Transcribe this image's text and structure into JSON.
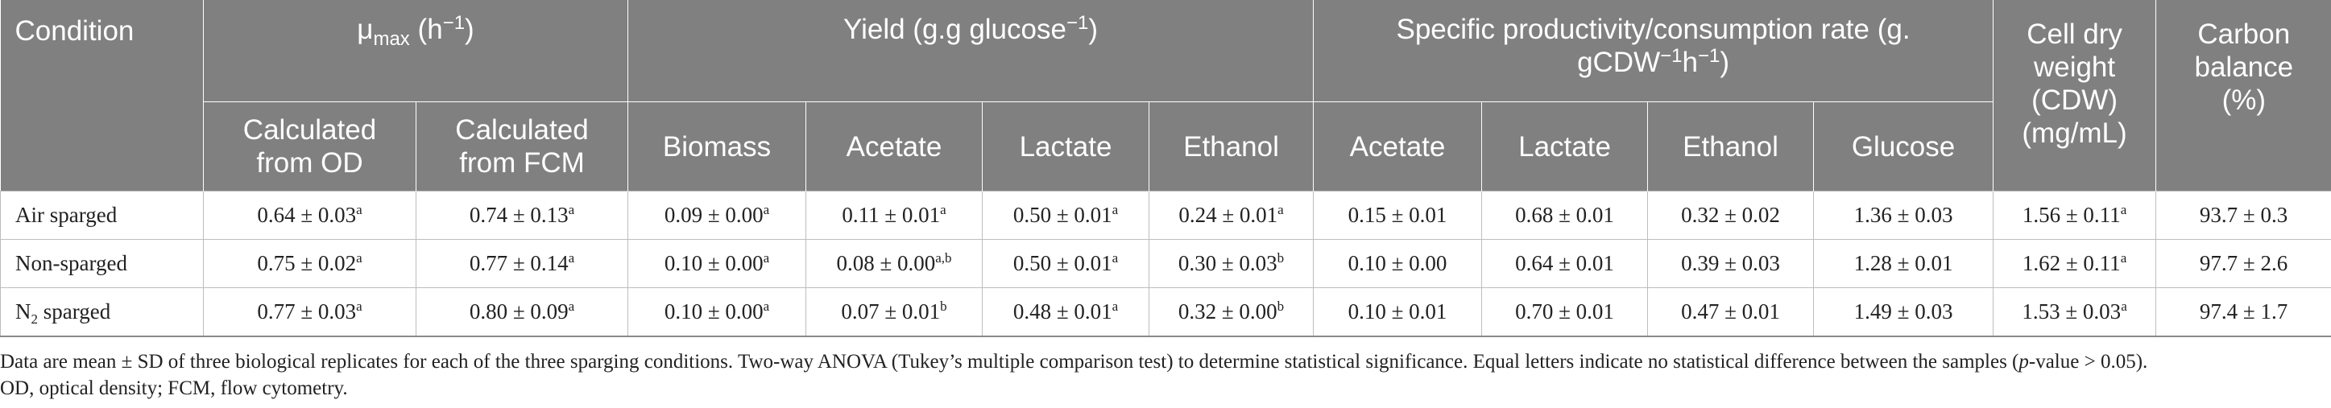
{
  "header": {
    "condition": "Condition",
    "mu_max": {
      "mu": "μ",
      "sub": "max",
      "unit_open": " (h",
      "unit_sup": "−1",
      "unit_close": ")"
    },
    "yield": {
      "text": "Yield (g.g glucose",
      "sup": "−1",
      "close": ")"
    },
    "productivity": {
      "line1": "Specific productivity/consumption rate (g.",
      "line2a": "gCDW",
      "sup1": "−1",
      "line2b": "h",
      "sup2": "−1",
      "close": ")"
    },
    "cdw": {
      "l1": "Cell dry",
      "l2": "weight",
      "l3": "(CDW)",
      "l4": "(mg/mL)"
    },
    "carbon": {
      "l1": "Carbon",
      "l2": "balance",
      "l3": "(%)"
    },
    "sub_columns": {
      "calc_od": {
        "l1": "Calculated",
        "l2": "from OD"
      },
      "calc_fcm": {
        "l1": "Calculated",
        "l2": "from FCM"
      },
      "biomass": "Biomass",
      "acetate": "Acetate",
      "lactate": "Lactate",
      "ethanol": "Ethanol",
      "p_acetate": "Acetate",
      "p_lactate": "Lactate",
      "p_ethanol": "Ethanol",
      "p_glucose": "Glucose"
    }
  },
  "rows": [
    {
      "label": "Air sparged",
      "cells": [
        {
          "v": "0.64 ± 0.03",
          "s": "a"
        },
        {
          "v": "0.74 ± 0.13",
          "s": "a"
        },
        {
          "v": "0.09 ± 0.00",
          "s": "a"
        },
        {
          "v": "0.11 ± 0.01",
          "s": "a"
        },
        {
          "v": "0.50 ± 0.01",
          "s": "a"
        },
        {
          "v": "0.24 ± 0.01",
          "s": "a"
        },
        {
          "v": "0.15 ± 0.01",
          "s": ""
        },
        {
          "v": "0.68 ± 0.01",
          "s": ""
        },
        {
          "v": "0.32 ± 0.02",
          "s": ""
        },
        {
          "v": "1.36 ± 0.03",
          "s": ""
        },
        {
          "v": "1.56 ± 0.11",
          "s": "a"
        },
        {
          "v": "93.7 ± 0.3",
          "s": ""
        }
      ]
    },
    {
      "label": "Non-sparged",
      "cells": [
        {
          "v": "0.75 ± 0.02",
          "s": "a"
        },
        {
          "v": "0.77 ± 0.14",
          "s": "a"
        },
        {
          "v": "0.10 ± 0.00",
          "s": "a"
        },
        {
          "v": "0.08 ± 0.00",
          "s": "a,b"
        },
        {
          "v": "0.50 ± 0.01",
          "s": "a"
        },
        {
          "v": "0.30 ± 0.03",
          "s": "b"
        },
        {
          "v": "0.10 ± 0.00",
          "s": ""
        },
        {
          "v": "0.64 ± 0.01",
          "s": ""
        },
        {
          "v": "0.39 ± 0.03",
          "s": ""
        },
        {
          "v": "1.28 ± 0.01",
          "s": ""
        },
        {
          "v": "1.62 ± 0.11",
          "s": "a"
        },
        {
          "v": "97.7 ± 2.6",
          "s": ""
        }
      ]
    },
    {
      "label_main": "N",
      "label_sub": "2",
      "label_rest": " sparged",
      "cells": [
        {
          "v": "0.77 ± 0.03",
          "s": "a"
        },
        {
          "v": "0.80 ± 0.09",
          "s": "a"
        },
        {
          "v": "0.10 ± 0.00",
          "s": "a"
        },
        {
          "v": "0.07 ± 0.01",
          "s": "b"
        },
        {
          "v": "0.48 ± 0.01",
          "s": "a"
        },
        {
          "v": "0.32 ± 0.00",
          "s": "b"
        },
        {
          "v": "0.10 ± 0.01",
          "s": ""
        },
        {
          "v": "0.70 ± 0.01",
          "s": ""
        },
        {
          "v": "0.47 ± 0.01",
          "s": ""
        },
        {
          "v": "1.49 ± 0.03",
          "s": ""
        },
        {
          "v": "1.53 ± 0.03",
          "s": "a"
        },
        {
          "v": "97.4 ± 1.7",
          "s": ""
        }
      ]
    }
  ],
  "footnote": {
    "part1": "Data are mean ± SD of three biological replicates for each of the three sparging conditions. Two-way ANOVA (Tukey’s multiple comparison test) to determine statistical significance. Equal letters indicate no statistical difference between the samples (",
    "p_italic": "p",
    "part2": "-value > 0.05).",
    "line2": "OD, optical density; FCM, flow cytometry."
  }
}
